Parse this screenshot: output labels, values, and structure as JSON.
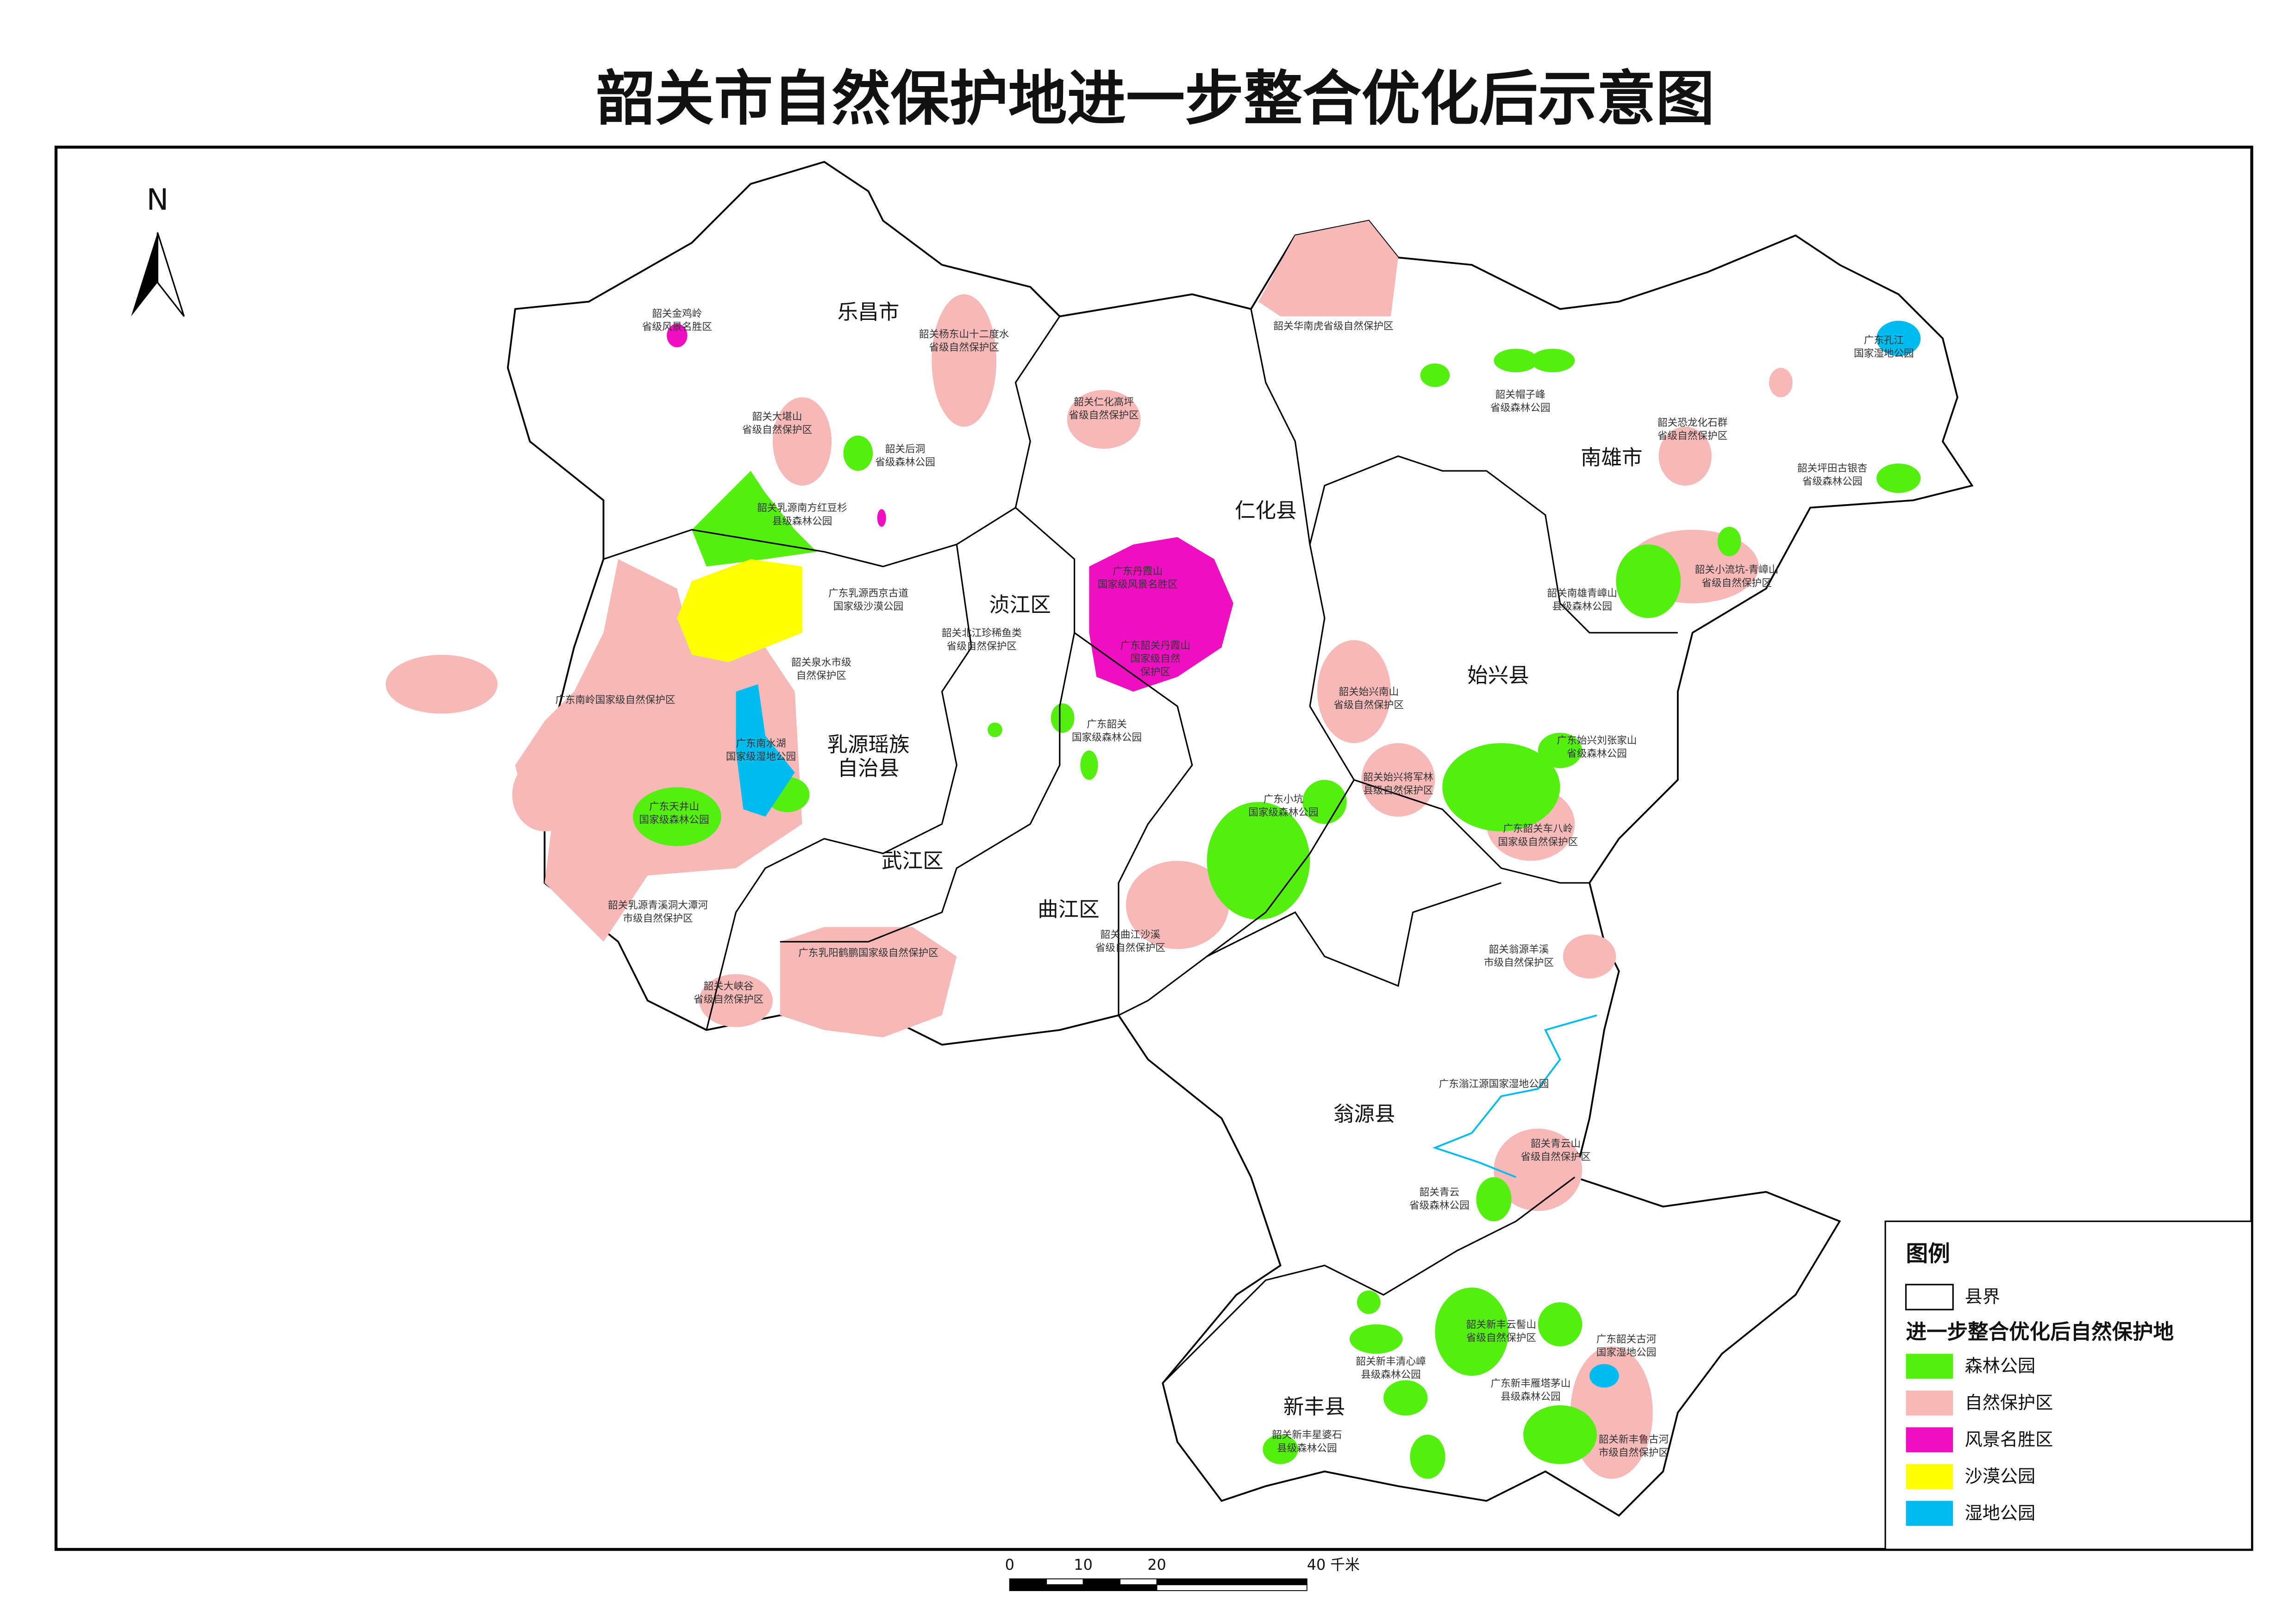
{
  "title": "韶关市自然保护地进一步整合优化后示意图",
  "north": "N",
  "legend": {
    "title": "图例",
    "boundary": "县界",
    "subtitle": "进一步整合优化后自然保护地",
    "items": [
      {
        "name": "森林公园",
        "color": "#55ee11"
      },
      {
        "name": "自然保护区",
        "color": "#f7b8b8"
      },
      {
        "name": "风景名胜区",
        "color": "#ee10c0"
      },
      {
        "name": "沙漠公园",
        "color": "#ffff00"
      },
      {
        "name": "湿地公园",
        "color": "#00bbee"
      }
    ]
  },
  "districts": [
    "乐昌市",
    "仁化县",
    "南雄市",
    "浈江区",
    "始兴县",
    "乳源瑶族",
    "自治县",
    "武江区",
    "曲江区",
    "翁源县",
    "新丰县"
  ],
  "areas": [
    {
      "lines": [
        "韶关金鸡岭",
        "省级风景名胜区"
      ]
    },
    {
      "lines": [
        "韶关杨东山十二度水",
        "省级自然保护区"
      ]
    },
    {
      "lines": [
        "韶关大堪山",
        "省级自然保护区"
      ]
    },
    {
      "lines": [
        "韶关后洞",
        "省级森林公园"
      ]
    },
    {
      "lines": [
        "韶关乳源南方红豆杉",
        "县级森林公园"
      ]
    },
    {
      "lines": [
        "广东乳源西京古道",
        "国家级沙漠公园"
      ]
    },
    {
      "lines": [
        "韶关北江珍稀鱼类",
        "省级自然保护区"
      ]
    },
    {
      "lines": [
        "韶关泉水市级",
        "自然保护区"
      ]
    },
    {
      "lines": [
        "广东南岭国家级自然保护区"
      ]
    },
    {
      "lines": [
        "广东南水湖",
        "国家级湿地公园"
      ]
    },
    {
      "lines": [
        "广东天井山",
        "国家级森林公园"
      ]
    },
    {
      "lines": [
        "韶关乳源青溪洞大潭河",
        "市级自然保护区"
      ]
    },
    {
      "lines": [
        "广东乳阳鹤鹏国家级自然保护区"
      ]
    },
    {
      "lines": [
        "韶关大峡谷",
        "省级自然保护区"
      ]
    },
    {
      "lines": [
        "韶关曲江沙溪",
        "省级自然保护区"
      ]
    },
    {
      "lines": [
        "广东韶关",
        "国家级森林公园"
      ]
    },
    {
      "lines": [
        "广东丹霞山",
        "国家级风景名胜区"
      ]
    },
    {
      "lines": [
        "广东韶关丹霞山",
        "国家级自然",
        "保护区"
      ]
    },
    {
      "lines": [
        "韶关仁化高坪",
        "省级自然保护区"
      ]
    },
    {
      "lines": [
        "韶关华南虎省级自然保护区"
      ]
    },
    {
      "lines": [
        "韶关帽子峰",
        "省级森林公园"
      ]
    },
    {
      "lines": [
        "韶关恐龙化石群",
        "省级自然保护区"
      ]
    },
    {
      "lines": [
        "广东孔江",
        "国家湿地公园"
      ]
    },
    {
      "lines": [
        "韶关坪田古银杏",
        "省级森林公园"
      ]
    },
    {
      "lines": [
        "韶关小流坑-青嶂山",
        "省级自然保护区"
      ]
    },
    {
      "lines": [
        "韶关南雄青嶂山",
        "县级森林公园"
      ]
    },
    {
      "lines": [
        "韶关始兴南山",
        "省级自然保护区"
      ]
    },
    {
      "lines": [
        "广东始兴刘张家山",
        "省级森林公园"
      ]
    },
    {
      "lines": [
        "韶关始兴将军林",
        "县级自然保护区"
      ]
    },
    {
      "lines": [
        "广东小坑",
        "国家级森林公园"
      ]
    },
    {
      "lines": [
        "广东韶关车八岭",
        "国家级自然保护区"
      ]
    },
    {
      "lines": [
        "韶关翁源羊溪",
        "市级自然保护区"
      ]
    },
    {
      "lines": [
        "广东滃江源国家湿地公园"
      ]
    },
    {
      "lines": [
        "韶关青云山",
        "省级自然保护区"
      ]
    },
    {
      "lines": [
        "韶关青云",
        "省级森林公园"
      ]
    },
    {
      "lines": [
        "韶关新丰云髻山",
        "省级自然保护区"
      ]
    },
    {
      "lines": [
        "广东韶关古河",
        "国家湿地公园"
      ]
    },
    {
      "lines": [
        "韶关新丰清心嶂",
        "县级森林公园"
      ]
    },
    {
      "lines": [
        "广东新丰雁塔茅山",
        "县级森林公园"
      ]
    },
    {
      "lines": [
        "韶关新丰星婆石",
        "县级森林公园"
      ]
    },
    {
      "lines": [
        "韶关新丰鲁古河",
        "市级自然保护区"
      ]
    }
  ],
  "scale": [
    "0",
    "10",
    "20",
    "40 千米"
  ]
}
